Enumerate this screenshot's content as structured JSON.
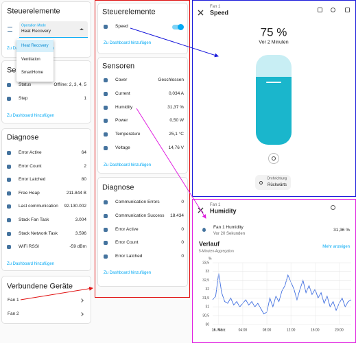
{
  "left": {
    "controls": {
      "title": "Steuerelemente",
      "select_label": "Operation Mode",
      "select_value": "Heat Recovery",
      "link": "Zu Dashboard hinzufügen",
      "menu": [
        "Heat Recovery",
        "Ventilation",
        "SmartHome"
      ]
    },
    "sensors": {
      "title": "Sensoren",
      "rows": [
        {
          "label": "Status",
          "value": "Offline: 2, 3, 4, 5"
        },
        {
          "label": "Step",
          "value": "1"
        }
      ],
      "link": "Zu Dashboard hinzufügen"
    },
    "diagnostics": {
      "title": "Diagnose",
      "rows": [
        {
          "label": "Error Active",
          "value": "64"
        },
        {
          "label": "Error Count",
          "value": "2"
        },
        {
          "label": "Error Latched",
          "value": "80"
        },
        {
          "label": "Free Heap",
          "value": "211.844 B"
        },
        {
          "label": "Last communication",
          "value": "92.130.002"
        },
        {
          "label": "Stack Fan Task",
          "value": "3.004"
        },
        {
          "label": "Stack Network Task",
          "value": "3.596"
        },
        {
          "label": "WiFi RSSI",
          "value": "-59 dBm"
        }
      ],
      "link": "Zu Dashboard hinzufügen"
    },
    "devices": {
      "title": "Verbundene Geräte",
      "items": [
        "Fan 1",
        "Fan 2"
      ]
    }
  },
  "middle": {
    "controls": {
      "title": "Steuerelemente",
      "rows": [
        {
          "label": "Speed"
        }
      ],
      "link": "Zu Dashboard hinzufügen"
    },
    "sensors": {
      "title": "Sensoren",
      "rows": [
        {
          "label": "Cover",
          "value": "Geschlossen"
        },
        {
          "label": "Current",
          "value": "0,034 A"
        },
        {
          "label": "Humidity",
          "value": "31,37 %"
        },
        {
          "label": "Power",
          "value": "0,50 W"
        },
        {
          "label": "Temperature",
          "value": "25,1 °C"
        },
        {
          "label": "Voltage",
          "value": "14,76 V"
        }
      ],
      "link": "Zu Dashboard hinzufügen"
    },
    "diagnostics": {
      "title": "Diagnose",
      "rows": [
        {
          "label": "Communication Errors",
          "value": "0"
        },
        {
          "label": "Communication Success",
          "value": "18.434"
        },
        {
          "label": "Error Active",
          "value": "0"
        },
        {
          "label": "Error Count",
          "value": "0"
        },
        {
          "label": "Error Latched",
          "value": "0"
        }
      ],
      "link": "Zu Dashboard hinzufügen"
    }
  },
  "speed_dialog": {
    "device": "Fan 1",
    "title": "Speed",
    "value": "75 %",
    "updated": "Vor 2 Minuten",
    "direction_label": "Drehrichtung",
    "direction_value": "Rückwärts"
  },
  "humidity_dialog": {
    "device": "Fan 1",
    "title": "Humidity",
    "entity": "Fan 1 Humidity",
    "updated": "Vor 20 Sekunden",
    "value": "31,36 %",
    "history_title": "Verlauf",
    "more": "Mehr anzeigen",
    "aggregation": "5-Minuten-Aggregation"
  },
  "chart_data": {
    "type": "line",
    "y_label": "%",
    "x": [
      -1,
      -0.5,
      0,
      0.5,
      1,
      1.5,
      2,
      2.5,
      3,
      3.5,
      4,
      4.5,
      5,
      5.5,
      6,
      6.5,
      7,
      7.5,
      8,
      8.5,
      9,
      9.5,
      10,
      10.5,
      11,
      11.5,
      12,
      12.5,
      13,
      13.5,
      14,
      14.5,
      15,
      15.5,
      16,
      16.5,
      17,
      17.5,
      18,
      18.5,
      19,
      19.5,
      20,
      20.5,
      21,
      21.5,
      22
    ],
    "series": [
      {
        "color": "#3f6ee0",
        "values": [
          31.4,
          31.6,
          32.9,
          31.8,
          31.3,
          31.2,
          31.5,
          31.1,
          31.3,
          31.0,
          31.2,
          31.4,
          31.1,
          31.3,
          31.0,
          31.2,
          30.9,
          30.6,
          30.7,
          31.5,
          31.0,
          31.6,
          31.3,
          31.9,
          32.2,
          32.8,
          32.4,
          32.0,
          31.4,
          32.0,
          32.5,
          31.8,
          32.2,
          31.7,
          32.0,
          31.5,
          31.8,
          31.2,
          31.6,
          31.0,
          31.3,
          30.8,
          31.2,
          31.5,
          31.0,
          31.3,
          31.4
        ]
      }
    ],
    "xlim": [
      -1,
      22
    ],
    "xticks": [
      {
        "value": 0,
        "label": "16. März"
      },
      {
        "value": 4,
        "label": "04:00"
      },
      {
        "value": 8,
        "label": "08:00"
      },
      {
        "value": 12,
        "label": "12:00"
      },
      {
        "value": 16,
        "label": "16:00"
      },
      {
        "value": 20,
        "label": "20:00"
      }
    ],
    "ylim": [
      30,
      33.5
    ],
    "yticks": [
      30,
      {
        "value": 30.5,
        "label": "30,5"
      },
      31,
      {
        "value": 31.5,
        "label": "31,5"
      },
      32,
      {
        "value": 32.5,
        "label": "32,5"
      },
      33,
      {
        "value": 33.5,
        "label": "33,5"
      }
    ],
    "grid": true
  }
}
